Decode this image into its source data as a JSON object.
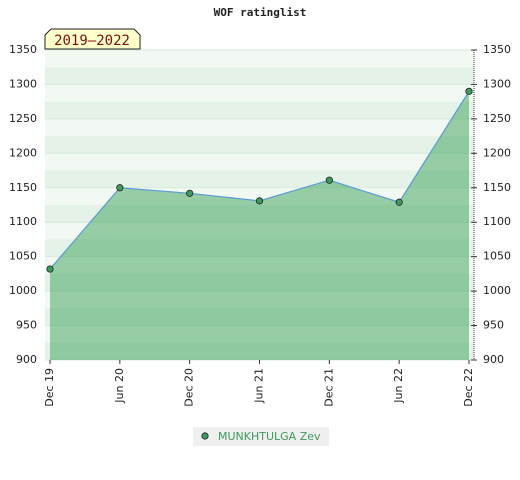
{
  "chart_data": {
    "type": "line",
    "title": "WOF ratinglist",
    "annotation": "2019–2022",
    "categories": [
      "Dec 19",
      "Jun 20",
      "Dec 20",
      "Jun 21",
      "Dec 21",
      "Jun 22",
      "Dec 22"
    ],
    "series": [
      {
        "name": "MUNKHTULGA Zev",
        "color": "#5b9bd5",
        "marker_color": "#3e9a5c",
        "values": [
          1032,
          1150,
          1142,
          1131,
          1161,
          1129,
          1290
        ]
      }
    ],
    "ylim": [
      900,
      1350
    ],
    "yticks": [
      900,
      950,
      1000,
      1050,
      1100,
      1150,
      1200,
      1250,
      1300,
      1350
    ],
    "y2lim": [
      900,
      1350
    ],
    "y2ticks": [
      900,
      950,
      1000,
      1050,
      1100,
      1150,
      1200,
      1250,
      1300,
      1350
    ],
    "grid": true
  }
}
